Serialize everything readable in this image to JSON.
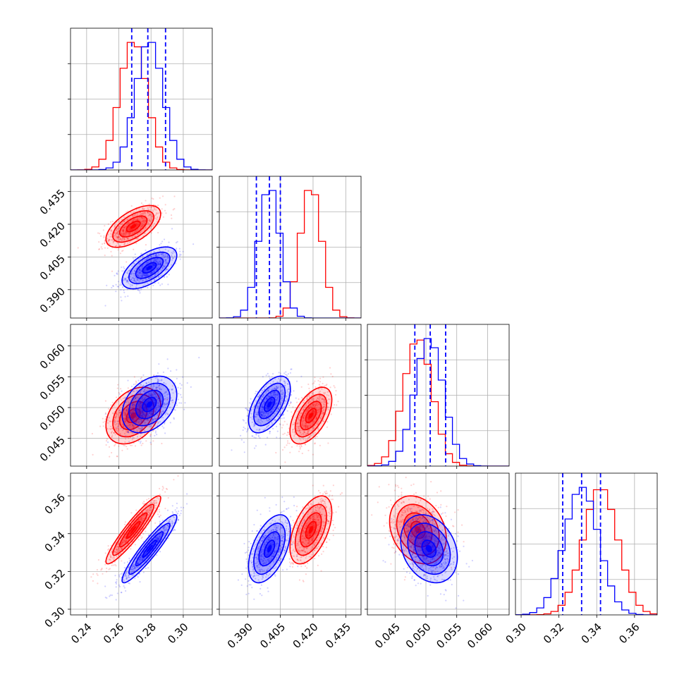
{
  "colors": {
    "series_a": "#ff0000",
    "series_b": "#0000ff",
    "grid": "#b0b0b0"
  },
  "chart_data": {
    "type": "corner",
    "grid": true,
    "legend": "none",
    "params": [
      {
        "index": 0,
        "range": [
          0.23,
          0.318
        ],
        "ticks": [
          0.24,
          0.26,
          0.28,
          0.3
        ],
        "tick_labels": [
          "0.24",
          "0.26",
          "0.28",
          "0.30"
        ]
      },
      {
        "index": 1,
        "range": [
          0.377,
          0.442
        ],
        "ticks": [
          0.39,
          0.405,
          0.42,
          0.435
        ],
        "tick_labels": [
          "0.390",
          "0.405",
          "0.420",
          "0.435"
        ]
      },
      {
        "index": 2,
        "range": [
          0.0405,
          0.0635
        ],
        "ticks": [
          0.045,
          0.05,
          0.055,
          0.06
        ],
        "tick_labels": [
          "0.045",
          "0.050",
          "0.055",
          "0.060"
        ]
      },
      {
        "index": 3,
        "range": [
          0.297,
          0.372
        ],
        "ticks": [
          0.3,
          0.32,
          0.34,
          0.36
        ],
        "tick_labels": [
          "0.30",
          "0.32",
          "0.34",
          "0.36"
        ]
      }
    ],
    "series": [
      {
        "color": "red",
        "means": [
          0.269,
          0.419,
          0.0487,
          0.342
        ],
        "sigmas": [
          0.0085,
          0.0048,
          0.0023,
          0.009
        ],
        "correlations": [
          [
            1,
            0.6,
            0.35,
            0.93
          ],
          [
            0.6,
            1,
            0.55,
            0.52
          ],
          [
            0.35,
            0.55,
            1,
            -0.25
          ],
          [
            0.93,
            0.52,
            -0.25,
            1
          ]
        ]
      },
      {
        "color": "blue",
        "means": [
          0.279,
          0.4,
          0.0505,
          0.332
        ],
        "sigmas": [
          0.0085,
          0.0048,
          0.0023,
          0.009
        ],
        "correlations": [
          [
            1,
            0.6,
            0.35,
            0.93
          ],
          [
            0.6,
            1,
            0.55,
            0.52
          ],
          [
            0.35,
            0.55,
            1,
            -0.25
          ],
          [
            0.93,
            0.52,
            -0.25,
            1
          ]
        ],
        "quantiles": [
          [
            0.268,
            0.278,
            0.289
          ],
          [
            0.394,
            0.4,
            0.405
          ],
          [
            0.0482,
            0.0507,
            0.0532
          ],
          [
            0.322,
            0.332,
            0.342
          ]
        ]
      }
    ],
    "contour_levels_sigma": [
      0.5,
      1.0,
      1.5,
      2.0
    ],
    "histogram_bins": 20
  }
}
